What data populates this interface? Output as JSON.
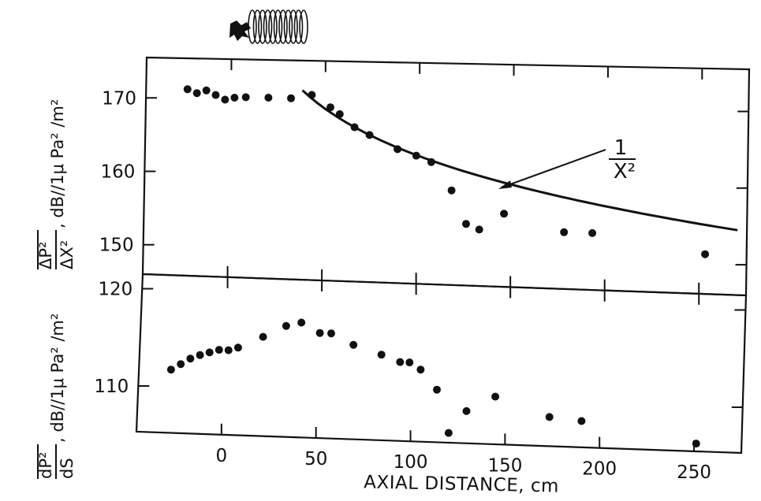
{
  "chart_data": [
    {
      "type": "scatter",
      "panel": "top",
      "ylabel_main_num": "ΔP²",
      "ylabel_main_den": "ΔX²",
      "ylabel_unit": ", dB//1μ Pa² /m²",
      "ylim": [
        146,
        175.5
      ],
      "yticks": [
        150,
        160,
        170
      ],
      "xlim": [
        -45,
        275
      ],
      "points": [
        {
          "x": -23,
          "y": 171.3
        },
        {
          "x": -18,
          "y": 170.8
        },
        {
          "x": -13,
          "y": 171.2
        },
        {
          "x": -8,
          "y": 170.6
        },
        {
          "x": -3,
          "y": 170.0
        },
        {
          "x": 2,
          "y": 170.3
        },
        {
          "x": 8,
          "y": 170.4
        },
        {
          "x": 20,
          "y": 170.4
        },
        {
          "x": 32,
          "y": 170.4
        },
        {
          "x": 43,
          "y": 170.9
        },
        {
          "x": 53,
          "y": 169.3
        },
        {
          "x": 58,
          "y": 168.4
        },
        {
          "x": 66,
          "y": 166.7
        },
        {
          "x": 74,
          "y": 165.7
        },
        {
          "x": 89,
          "y": 163.9
        },
        {
          "x": 99,
          "y": 163.1
        },
        {
          "x": 107,
          "y": 162.3
        },
        {
          "x": 118,
          "y": 158.6
        },
        {
          "x": 126,
          "y": 154.2
        },
        {
          "x": 133,
          "y": 153.5
        },
        {
          "x": 146,
          "y": 155.7
        },
        {
          "x": 178,
          "y": 153.5
        },
        {
          "x": 193,
          "y": 153.5
        },
        {
          "x": 253,
          "y": 151.2
        }
      ],
      "curve_label_num": "1",
      "curve_label_den": "X²",
      "curve": {
        "type": "inverse-square",
        "x_start": 38,
        "x_end": 270
      }
    },
    {
      "type": "scatter",
      "panel": "bottom",
      "ylabel_main_num": "dP²",
      "ylabel_main_den": "dS",
      "ylabel_unit": ", dB//1μ Pa² /m²",
      "ylim": [
        105.3,
        121.5
      ],
      "yticks": [
        110,
        120
      ],
      "xlim": [
        -45,
        275
      ],
      "points": [
        {
          "x": -28,
          "y": 111.8
        },
        {
          "x": -23,
          "y": 112.4
        },
        {
          "x": -18,
          "y": 113.0
        },
        {
          "x": -13,
          "y": 113.4
        },
        {
          "x": -8,
          "y": 113.7
        },
        {
          "x": -3,
          "y": 114.0
        },
        {
          "x": 2,
          "y": 114.0
        },
        {
          "x": 7,
          "y": 114.3
        },
        {
          "x": 20,
          "y": 115.5
        },
        {
          "x": 32,
          "y": 116.7
        },
        {
          "x": 40,
          "y": 117.1
        },
        {
          "x": 50,
          "y": 116.1
        },
        {
          "x": 56,
          "y": 116.1
        },
        {
          "x": 68,
          "y": 115.0
        },
        {
          "x": 83,
          "y": 114.1
        },
        {
          "x": 93,
          "y": 113.4
        },
        {
          "x": 98,
          "y": 113.4
        },
        {
          "x": 104,
          "y": 112.7
        },
        {
          "x": 113,
          "y": 110.7
        },
        {
          "x": 120,
          "y": 106.3
        },
        {
          "x": 129,
          "y": 108.6
        },
        {
          "x": 144,
          "y": 110.2
        },
        {
          "x": 173,
          "y": 108.3
        },
        {
          "x": 190,
          "y": 108.0
        },
        {
          "x": 251,
          "y": 106.1
        }
      ]
    }
  ],
  "x_axis": {
    "title": "AXIAL DISTANCE, cm",
    "ticks": [
      0,
      50,
      100,
      150,
      200,
      250
    ]
  }
}
